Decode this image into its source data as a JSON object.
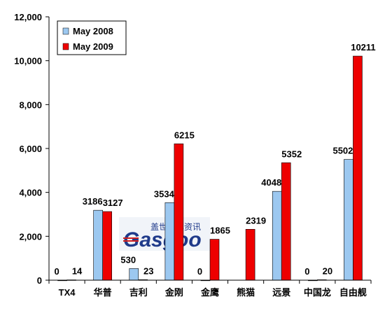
{
  "chart_data": {
    "type": "bar",
    "categories": [
      "TX4",
      "华普",
      "吉利",
      "金刚",
      "金鹰",
      "熊猫",
      "远景",
      "中国龙",
      "自由舰"
    ],
    "series": [
      {
        "name": "May 2008",
        "values": [
          0,
          3186,
          530,
          3534,
          0,
          null,
          4048,
          0,
          5502
        ],
        "labels": [
          "0",
          "3186",
          "530",
          "3534",
          "0",
          "",
          "4048",
          "0",
          "5502"
        ],
        "color": "#9cc8f0"
      },
      {
        "name": "May 2009",
        "values": [
          14,
          3127,
          23,
          6215,
          1865,
          2319,
          5352,
          20,
          10211
        ],
        "labels": [
          "14",
          "3127",
          "23",
          "6215",
          "1865",
          "2319",
          "5352",
          "20",
          "10211"
        ],
        "color": "#ee0000"
      }
    ],
    "ylim": [
      0,
      12000
    ],
    "yticks": [
      0,
      2000,
      4000,
      6000,
      8000,
      10000,
      12000
    ],
    "ytick_labels": [
      "0",
      "2,000",
      "4,000",
      "6,000",
      "8,000",
      "10,000",
      "12,000"
    ],
    "legend_position": "top-left",
    "grid": false
  },
  "watermark": {
    "brand_text": "Gasgoo",
    "chinese_text": "盖世汽车资讯",
    "color": "#1f3a8a",
    "accent_color": "#d02020"
  }
}
